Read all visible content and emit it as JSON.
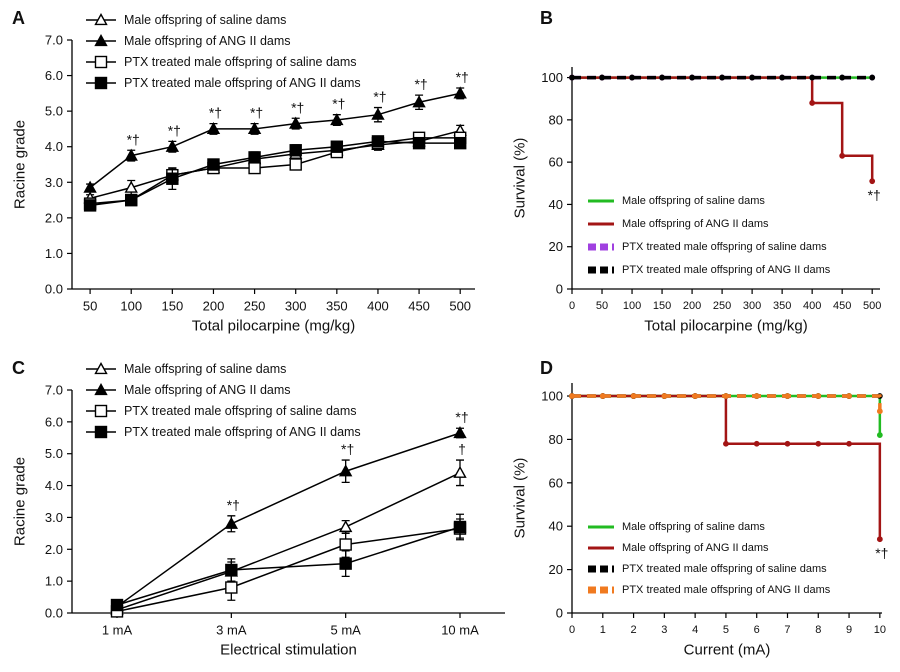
{
  "chart_data": [
    {
      "type": "line",
      "label": "A",
      "xlabel": "Total pilocarpine (mg/kg)",
      "ylabel": "Racine grade",
      "x": [
        50,
        100,
        150,
        200,
        250,
        300,
        350,
        400,
        450,
        500
      ],
      "xlim": [
        28,
        518
      ],
      "xticks": [
        50,
        100,
        150,
        200,
        250,
        300,
        350,
        400,
        450,
        500
      ],
      "ylim": [
        0,
        7
      ],
      "yticks": [
        {
          "value": 0,
          "label": "0.0"
        },
        {
          "value": 1,
          "label": "1.0"
        },
        {
          "value": 2,
          "label": "2.0"
        },
        {
          "value": 3,
          "label": "3.0"
        },
        {
          "value": 4,
          "label": "4.0"
        },
        {
          "value": 5,
          "label": "5.0"
        },
        {
          "value": 6,
          "label": "6.0"
        },
        {
          "value": 7,
          "label": "7.0"
        }
      ],
      "legend": "upper left",
      "series": [
        {
          "name": "Male offspring of saline dams",
          "color": "#000000",
          "marker": "open-triangle",
          "values": [
            2.55,
            2.85,
            3.2,
            3.4,
            3.65,
            3.8,
            3.9,
            4.05,
            4.15,
            4.45
          ],
          "errors": [
            0.1,
            0.2,
            0.2,
            0.15,
            0.15,
            0.2,
            0.15,
            0.15,
            0.15,
            0.15
          ]
        },
        {
          "name": "Male offspring of ANG II dams",
          "color": "#000000",
          "marker": "triangle",
          "values": [
            2.85,
            3.75,
            4.0,
            4.5,
            4.5,
            4.65,
            4.75,
            4.9,
            5.25,
            5.5
          ],
          "errors": [
            0.1,
            0.15,
            0.15,
            0.15,
            0.15,
            0.15,
            0.15,
            0.2,
            0.2,
            0.15
          ]
        },
        {
          "name": "PTX treated male offspring of saline dams",
          "color": "#000000",
          "marker": "open-square",
          "values": [
            2.4,
            2.5,
            3.2,
            3.4,
            3.4,
            3.5,
            3.85,
            4.1,
            4.25,
            4.25
          ],
          "errors": [
            0.1,
            0.1,
            0.2,
            0.15,
            0.15,
            0.15,
            0.1,
            0.15,
            0.1,
            0.1
          ]
        },
        {
          "name": "PTX treated male offspring of ANG II dams",
          "color": "#000000",
          "marker": "square",
          "values": [
            2.35,
            2.5,
            3.1,
            3.5,
            3.7,
            3.9,
            4.0,
            4.15,
            4.1,
            4.1
          ],
          "errors": [
            0.1,
            0.1,
            0.3,
            0.15,
            0.15,
            0.15,
            0.1,
            0.1,
            0.1,
            0.1
          ]
        }
      ],
      "annotations": [
        {
          "series": "Male offspring of ANG II dams",
          "x": 100,
          "text": "*†"
        },
        {
          "series": "Male offspring of ANG II dams",
          "x": 150,
          "text": "*†"
        },
        {
          "series": "Male offspring of ANG II dams",
          "x": 200,
          "text": "*†"
        },
        {
          "series": "Male offspring of ANG II dams",
          "x": 250,
          "text": "*†"
        },
        {
          "series": "Male offspring of ANG II dams",
          "x": 300,
          "text": "*†"
        },
        {
          "series": "Male offspring of ANG II dams",
          "x": 350,
          "text": "*†"
        },
        {
          "series": "Male offspring of ANG II dams",
          "x": 400,
          "text": "*†"
        },
        {
          "series": "Male offspring of ANG II dams",
          "x": 450,
          "text": "*†"
        },
        {
          "series": "Male offspring of ANG II dams",
          "x": 500,
          "text": "*†"
        }
      ]
    },
    {
      "type": "step",
      "label": "B",
      "xlabel": "Total pilocarpine (mg/kg)",
      "ylabel": "Survival (%)",
      "x": [
        0,
        50,
        100,
        150,
        200,
        250,
        300,
        350,
        400,
        450,
        500
      ],
      "xlim": [
        0,
        513
      ],
      "xticks": [
        0,
        50,
        100,
        150,
        200,
        250,
        300,
        350,
        400,
        450,
        500
      ],
      "ylim": [
        0,
        105
      ],
      "yticks": [
        0,
        20,
        40,
        60,
        80,
        100
      ],
      "legend": "lower left",
      "series": [
        {
          "name": "Male offspring of saline dams",
          "color": "#22bb22",
          "dash": false,
          "values": [
            100,
            100,
            100,
            100,
            100,
            100,
            100,
            100,
            100,
            100,
            100
          ]
        },
        {
          "name": "Male offspring of ANG II dams",
          "color": "#a31515",
          "dash": false,
          "values": [
            100,
            100,
            100,
            100,
            100,
            100,
            100,
            100,
            88,
            63,
            51
          ]
        },
        {
          "name": "PTX treated male offspring of saline dams",
          "color": "#a040e0",
          "dash": true,
          "values": [
            100,
            100,
            100,
            100,
            100,
            100,
            100,
            100,
            100,
            100,
            100
          ]
        },
        {
          "name": "PTX treated male offspring of ANG II dams",
          "color": "#000000",
          "dash": true,
          "values": [
            100,
            100,
            100,
            100,
            100,
            100,
            100,
            100,
            100,
            100,
            100
          ]
        }
      ],
      "annotations": [
        {
          "series": "Male offspring of ANG II dams",
          "x": 500,
          "text": "*†"
        }
      ]
    },
    {
      "type": "line",
      "label": "C",
      "xlabel": "Electrical stimulation",
      "ylabel": "Racine grade",
      "categories": [
        "1 mA",
        "3 mA",
        "5 mA",
        "10 mA"
      ],
      "ylim": [
        0,
        7
      ],
      "yticks": [
        {
          "value": 0,
          "label": "0.0"
        },
        {
          "value": 1,
          "label": "1.0"
        },
        {
          "value": 2,
          "label": "2.0"
        },
        {
          "value": 3,
          "label": "3.0"
        },
        {
          "value": 4,
          "label": "4.0"
        },
        {
          "value": 5,
          "label": "5.0"
        },
        {
          "value": 6,
          "label": "6.0"
        },
        {
          "value": 7,
          "label": "7.0"
        }
      ],
      "legend": "upper left",
      "series": [
        {
          "name": "Male offspring of saline dams",
          "color": "#000000",
          "marker": "open-triangle",
          "values": [
            0.1,
            1.3,
            2.7,
            4.4
          ],
          "errors": [
            0.1,
            0.3,
            0.2,
            0.4
          ]
        },
        {
          "name": "Male offspring of ANG II dams",
          "color": "#000000",
          "marker": "triangle",
          "values": [
            0.2,
            2.8,
            4.45,
            5.65
          ],
          "errors": [
            0.1,
            0.25,
            0.35,
            0.15
          ]
        },
        {
          "name": "PTX treated male offspring of saline dams",
          "color": "#000000",
          "marker": "open-square",
          "values": [
            0.05,
            0.8,
            2.15,
            2.65
          ],
          "errors": [
            0.1,
            0.4,
            0.4,
            0.3
          ]
        },
        {
          "name": "PTX treated male offspring of ANG II dams",
          "color": "#000000",
          "marker": "square",
          "values": [
            0.25,
            1.35,
            1.55,
            2.7
          ],
          "errors": [
            0.1,
            0.35,
            0.4,
            0.4
          ]
        }
      ],
      "annotations": [
        {
          "series": "Male offspring of ANG II dams",
          "x": "3 mA",
          "text": "*†"
        },
        {
          "series": "Male offspring of ANG II dams",
          "x": "5 mA",
          "text": "*†"
        },
        {
          "series": "Male offspring of ANG II dams",
          "x": "10 mA",
          "text": "*†"
        },
        {
          "series": "Male offspring of saline dams",
          "x": "10 mA",
          "text": "†"
        }
      ]
    },
    {
      "type": "step",
      "label": "D",
      "xlabel": "Current (mA)",
      "ylabel": "Survival (%)",
      "x": [
        0,
        1,
        2,
        3,
        4,
        5,
        6,
        7,
        8,
        9,
        10
      ],
      "xlim": [
        0,
        10.07
      ],
      "xticks": [
        0,
        1,
        2,
        3,
        4,
        5,
        6,
        7,
        8,
        9,
        10
      ],
      "ylim": [
        0,
        106
      ],
      "yticks": [
        0,
        20,
        40,
        60,
        80,
        100
      ],
      "legend": "lower left",
      "series": [
        {
          "name": "Male offspring of saline dams",
          "color": "#22bb22",
          "dash": false,
          "values": [
            100,
            100,
            100,
            100,
            100,
            100,
            100,
            100,
            100,
            100,
            82
          ]
        },
        {
          "name": "Male offspring of ANG II dams",
          "color": "#a31515",
          "dash": false,
          "values": [
            100,
            100,
            100,
            100,
            100,
            78,
            78,
            78,
            78,
            78,
            34
          ]
        },
        {
          "name": "PTX treated male offspring of saline dams",
          "color": "#000000",
          "dash": true,
          "values": [
            100,
            100,
            100,
            100,
            100,
            100,
            100,
            100,
            100,
            100,
            100
          ]
        },
        {
          "name": "PTX treated male offspring of ANG II dams",
          "color": "#f07a20",
          "dash": true,
          "values": [
            100,
            100,
            100,
            100,
            100,
            100,
            100,
            100,
            100,
            100,
            93
          ]
        }
      ],
      "annotations": [
        {
          "series": "Male offspring of ANG II dams",
          "x": 10,
          "text": "*†"
        }
      ]
    }
  ]
}
